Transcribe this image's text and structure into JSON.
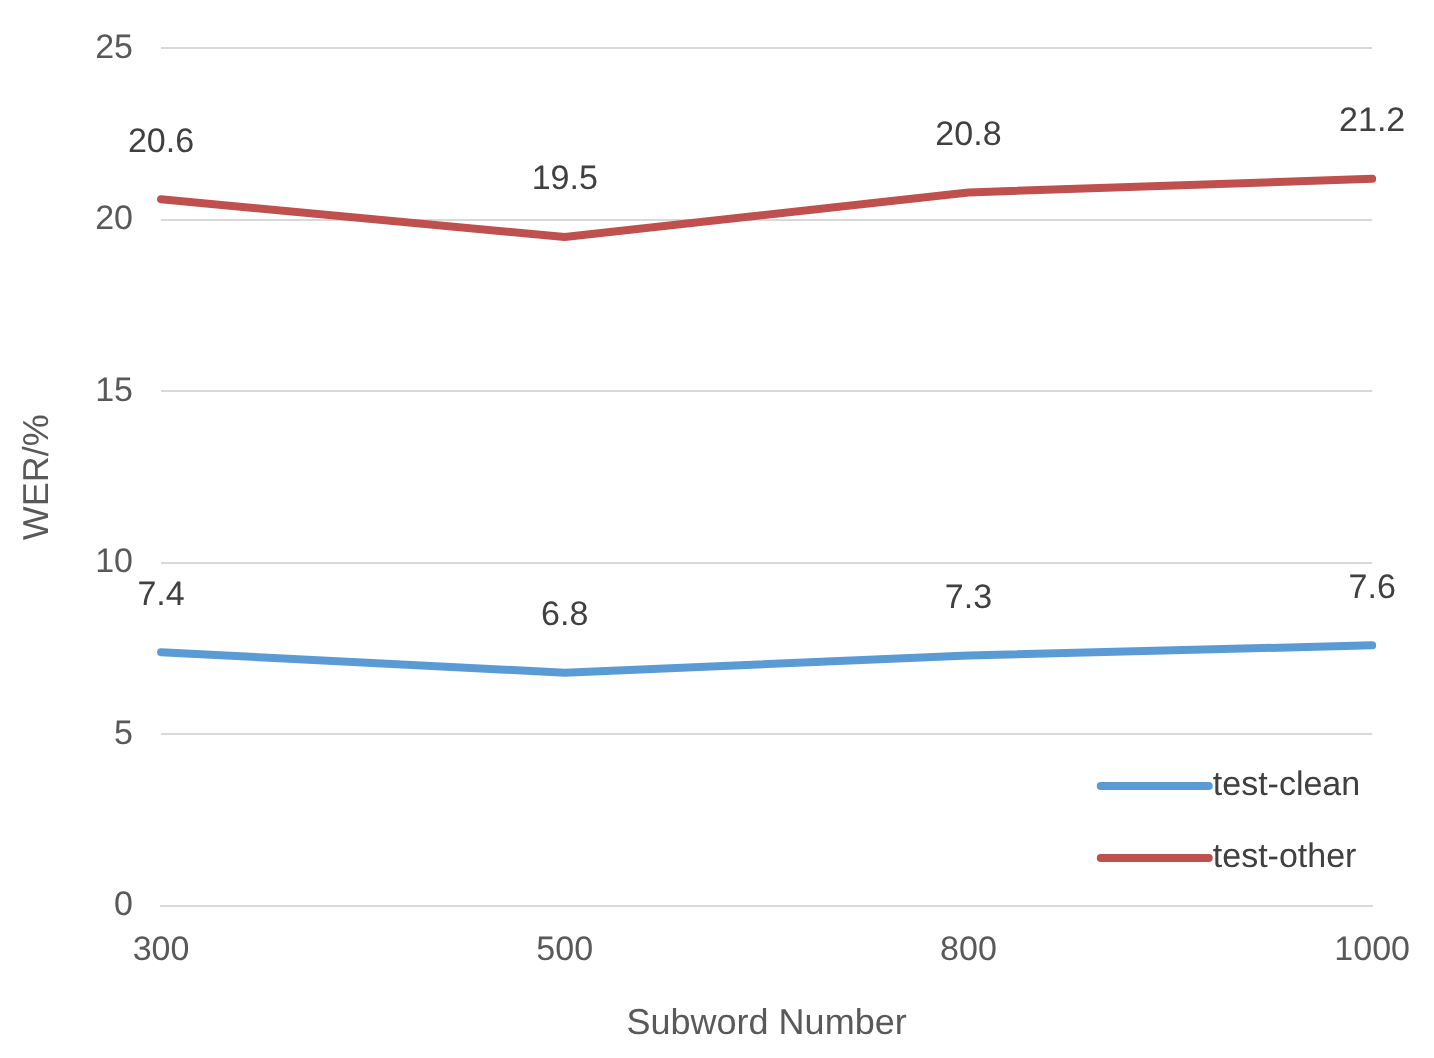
{
  "chart_data": {
    "type": "line",
    "xlabel": "Subword Number",
    "ylabel": "WER/%",
    "categories": [
      "300",
      "500",
      "800",
      "1000"
    ],
    "series": [
      {
        "name": "test-clean",
        "color": "#5b9bd5",
        "values": [
          7.4,
          6.8,
          7.3,
          7.6
        ]
      },
      {
        "name": "test-other",
        "color": "#c0504d",
        "values": [
          20.6,
          19.5,
          20.8,
          21.2
        ]
      }
    ],
    "ylim": [
      0,
      25
    ],
    "yticks": [
      0,
      5,
      10,
      15,
      20,
      25
    ],
    "grid": "y",
    "legend": "bottom right",
    "data_labels": true,
    "marker": "none",
    "line_style": "solid"
  }
}
